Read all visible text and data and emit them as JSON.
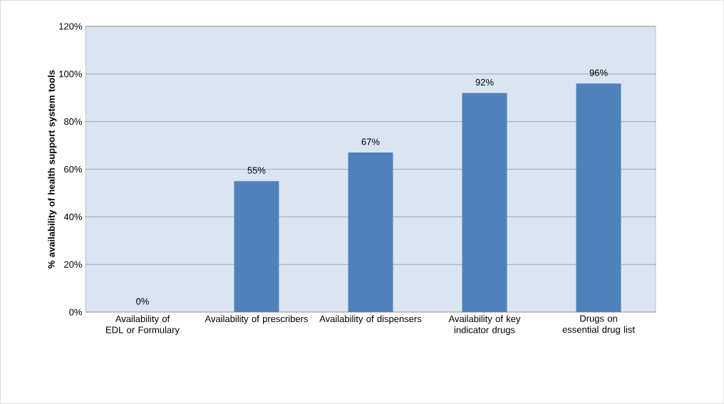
{
  "chart_data": {
    "type": "bar",
    "ylabel": "% availability of health support system tools",
    "categories": [
      "Availability of EDL or Formulary",
      "Availability of prescribers",
      "Availability of dispensers",
      "Availability of key indicator drugs",
      "Drugs on essential drug list"
    ],
    "values": [
      0,
      55,
      67,
      92,
      96
    ],
    "value_labels": [
      "0%",
      "55%",
      "67%",
      "92%",
      "96%"
    ],
    "color": "#4f81bd",
    "ylim": [
      0,
      120
    ],
    "yticks": [
      {
        "value": 0,
        "label": "0%"
      },
      {
        "value": 20,
        "label": "20%"
      },
      {
        "value": 40,
        "label": "40%"
      },
      {
        "value": 60,
        "label": "60%"
      },
      {
        "value": 80,
        "label": "80%"
      },
      {
        "value": 100,
        "label": "100%"
      },
      {
        "value": 120,
        "label": "120%"
      }
    ],
    "grid": "y"
  }
}
